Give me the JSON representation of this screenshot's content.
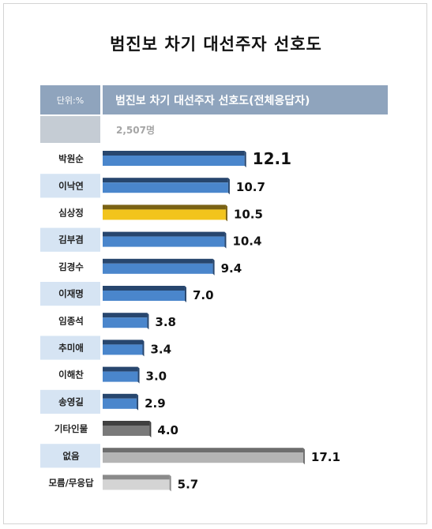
{
  "title": "범진보 차기 대선주자 선호도",
  "header": {
    "unit_label": "단위:%",
    "column_title": "범진보 차기 대선주자 선호도(전체응답자)",
    "respondents": "2,507명"
  },
  "colors": {
    "header": "#8fa4bd",
    "candidate_bar": "#4a86cc",
    "candidate_bar_top": "#27466e",
    "highlight_bar": "#f2c41c",
    "highlight_bar_top": "#7a6214",
    "other_bar": "#7a7a7a",
    "other_bar_top": "#404040",
    "none_bar": "#b4b4b4",
    "none_bar_top": "#6e6e6e",
    "dontknow_bar": "#d4d4d4",
    "dontknow_bar_top": "#8a8a8a",
    "label_bg_blue": "#d6e4f3",
    "label_bg_white": "#ffffff"
  },
  "chart_data": {
    "type": "bar",
    "orientation": "horizontal",
    "title": "범진보 차기 대선주자 선호도(전체응답자)",
    "unit": "%",
    "categories": [
      "박원순",
      "이낙연",
      "심상정",
      "김부겸",
      "김경수",
      "이재명",
      "임종석",
      "추미애",
      "이해찬",
      "송영길",
      "기타인물",
      "없음",
      "모름/무응답"
    ],
    "values": [
      12.1,
      10.7,
      10.5,
      10.4,
      9.4,
      7.0,
      3.8,
      3.4,
      3.0,
      2.9,
      4.0,
      17.1,
      5.7
    ],
    "value_labels": [
      "12.1",
      "10.7",
      "10.5",
      "10.4",
      "9.4",
      "7.0",
      "3.8",
      "3.4",
      "3.0",
      "2.9",
      "4.0",
      "17.1",
      "5.7"
    ],
    "bar_styles": [
      "candidate",
      "candidate",
      "highlight",
      "candidate",
      "candidate",
      "candidate",
      "candidate",
      "candidate",
      "candidate",
      "candidate",
      "other",
      "none",
      "dontknow"
    ],
    "label_shading": [
      "white",
      "blue",
      "white",
      "blue",
      "white",
      "blue",
      "white",
      "blue",
      "white",
      "blue",
      "white",
      "blue",
      "white"
    ]
  }
}
